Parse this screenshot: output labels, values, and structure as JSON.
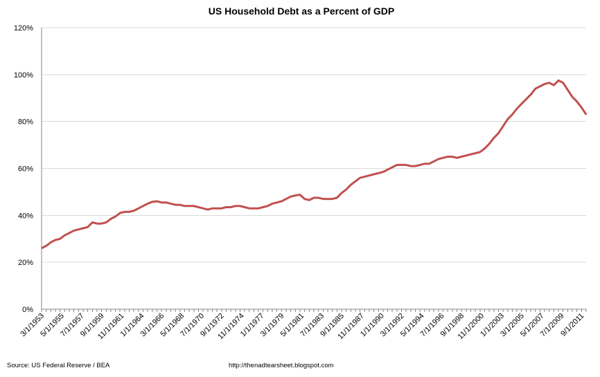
{
  "chart_data": {
    "type": "line",
    "title": "US Household Debt as a Percent of GDP",
    "xlabel": "",
    "ylabel": "",
    "ylim": [
      0,
      120
    ],
    "y_ticks": [
      "0%",
      "20%",
      "40%",
      "60%",
      "80%",
      "100%",
      "120%"
    ],
    "x_tick_labels": [
      "3/1/1953",
      "5/1/1955",
      "7/1/1957",
      "9/1/1959",
      "11/1/1961",
      "1/1/1964",
      "3/1/1966",
      "5/1/1968",
      "7/1/1970",
      "9/1/1972",
      "11/1/1974",
      "1/1/1977",
      "3/1/1979",
      "5/1/1981",
      "7/1/1983",
      "9/1/1985",
      "11/1/1987",
      "1/1/1990",
      "3/1/1992",
      "5/1/1994",
      "7/1/1996",
      "9/1/1998",
      "11/1/2000",
      "1/1/2003",
      "3/1/2005",
      "5/1/2007",
      "7/1/2009",
      "9/1/2011"
    ],
    "grid": "horizontal",
    "series": [
      {
        "color": "#c0504d",
        "points": [
          [
            "1953-03",
            26
          ],
          [
            "1953-09",
            27
          ],
          [
            "1954-03",
            28.5
          ],
          [
            "1954-09",
            29.5
          ],
          [
            "1955-03",
            30
          ],
          [
            "1955-09",
            31.5
          ],
          [
            "1956-03",
            32.5
          ],
          [
            "1956-09",
            33.5
          ],
          [
            "1957-03",
            34
          ],
          [
            "1957-09",
            34.5
          ],
          [
            "1958-03",
            35
          ],
          [
            "1958-09",
            37
          ],
          [
            "1959-03",
            36.5
          ],
          [
            "1959-09",
            36.5
          ],
          [
            "1960-03",
            37
          ],
          [
            "1960-09",
            38.5
          ],
          [
            "1961-03",
            39.5
          ],
          [
            "1961-09",
            41
          ],
          [
            "1962-03",
            41.5
          ],
          [
            "1962-09",
            41.5
          ],
          [
            "1963-03",
            42
          ],
          [
            "1963-09",
            43
          ],
          [
            "1964-03",
            44
          ],
          [
            "1964-09",
            45
          ],
          [
            "1965-03",
            45.8
          ],
          [
            "1965-09",
            46
          ],
          [
            "1966-03",
            45.5
          ],
          [
            "1966-09",
            45.5
          ],
          [
            "1967-03",
            45
          ],
          [
            "1967-09",
            44.5
          ],
          [
            "1968-03",
            44.5
          ],
          [
            "1968-09",
            44
          ],
          [
            "1969-03",
            44
          ],
          [
            "1969-09",
            44
          ],
          [
            "1970-03",
            43.5
          ],
          [
            "1970-09",
            43
          ],
          [
            "1971-03",
            42.5
          ],
          [
            "1971-09",
            43
          ],
          [
            "1972-03",
            43
          ],
          [
            "1972-09",
            43
          ],
          [
            "1973-03",
            43.5
          ],
          [
            "1973-09",
            43.5
          ],
          [
            "1974-03",
            44
          ],
          [
            "1974-09",
            44
          ],
          [
            "1975-03",
            43.5
          ],
          [
            "1975-09",
            43
          ],
          [
            "1976-03",
            43
          ],
          [
            "1976-09",
            43
          ],
          [
            "1977-03",
            43.5
          ],
          [
            "1977-09",
            44
          ],
          [
            "1978-03",
            45
          ],
          [
            "1978-09",
            45.5
          ],
          [
            "1979-03",
            46
          ],
          [
            "1979-09",
            47
          ],
          [
            "1980-03",
            48
          ],
          [
            "1980-09",
            48.5
          ],
          [
            "1981-03",
            48.8
          ],
          [
            "1981-09",
            47
          ],
          [
            "1982-03",
            46.5
          ],
          [
            "1982-09",
            47.5
          ],
          [
            "1983-03",
            47.5
          ],
          [
            "1983-09",
            47
          ],
          [
            "1984-03",
            47
          ],
          [
            "1984-09",
            47
          ],
          [
            "1985-03",
            47.5
          ],
          [
            "1985-09",
            49.5
          ],
          [
            "1986-03",
            51
          ],
          [
            "1986-09",
            53
          ],
          [
            "1987-03",
            54.5
          ],
          [
            "1987-09",
            56
          ],
          [
            "1988-03",
            56.5
          ],
          [
            "1988-09",
            57
          ],
          [
            "1989-03",
            57.5
          ],
          [
            "1989-09",
            58
          ],
          [
            "1990-03",
            58.5
          ],
          [
            "1990-09",
            59.5
          ],
          [
            "1991-03",
            60.5
          ],
          [
            "1991-09",
            61.5
          ],
          [
            "1992-03",
            61.5
          ],
          [
            "1992-09",
            61.5
          ],
          [
            "1993-03",
            61
          ],
          [
            "1993-09",
            61
          ],
          [
            "1994-03",
            61.5
          ],
          [
            "1994-09",
            62
          ],
          [
            "1995-03",
            62
          ],
          [
            "1995-09",
            63
          ],
          [
            "1996-03",
            64
          ],
          [
            "1996-09",
            64.5
          ],
          [
            "1997-03",
            65
          ],
          [
            "1997-09",
            65
          ],
          [
            "1998-03",
            64.5
          ],
          [
            "1998-09",
            65
          ],
          [
            "1999-03",
            65.5
          ],
          [
            "1999-09",
            66
          ],
          [
            "2000-03",
            66.5
          ],
          [
            "2000-09",
            67
          ],
          [
            "2001-03",
            68.5
          ],
          [
            "2001-09",
            70.5
          ],
          [
            "2002-03",
            73
          ],
          [
            "2002-09",
            75
          ],
          [
            "2003-03",
            78
          ],
          [
            "2003-09",
            81
          ],
          [
            "2004-03",
            83
          ],
          [
            "2004-09",
            85.5
          ],
          [
            "2005-03",
            87.5
          ],
          [
            "2005-09",
            89.5
          ],
          [
            "2006-03",
            91.5
          ],
          [
            "2006-09",
            94
          ],
          [
            "2007-03",
            95
          ],
          [
            "2007-09",
            96
          ],
          [
            "2008-03",
            96.5
          ],
          [
            "2008-09",
            95.5
          ],
          [
            "2009-03",
            97.5
          ],
          [
            "2009-09",
            96.5
          ],
          [
            "2010-03",
            93.5
          ],
          [
            "2010-09",
            90.5
          ],
          [
            "2011-03",
            88.5
          ],
          [
            "2011-09",
            86
          ],
          [
            "2012-03",
            83
          ]
        ]
      }
    ]
  },
  "footer": {
    "source": "Source:  US Federal Reserve / BEA",
    "url": "http://thenadtearsheet.blogspot.com"
  }
}
